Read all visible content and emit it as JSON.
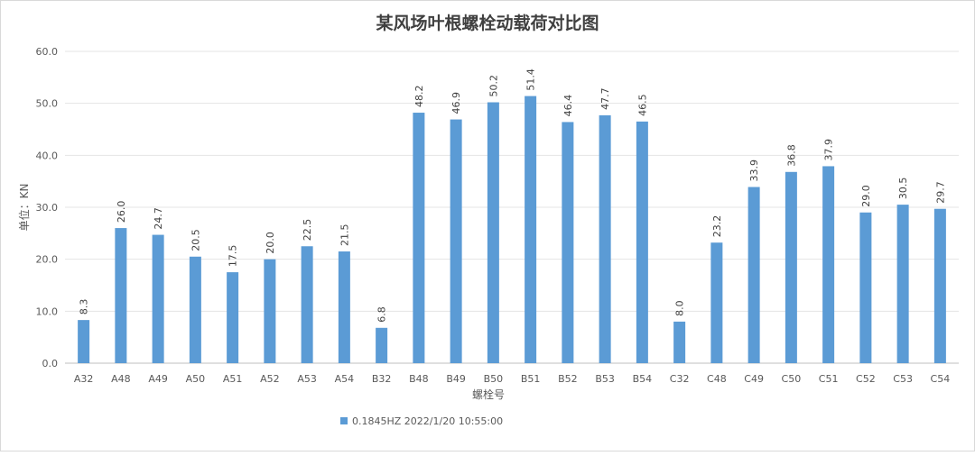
{
  "chart_data": {
    "type": "bar",
    "title": "某风场叶根螺栓动载荷对比图",
    "xlabel": "螺栓号",
    "ylabel": "单位：KN",
    "ylim": [
      0,
      60
    ],
    "yticks": [
      "0.0",
      "10.0",
      "20.0",
      "30.0",
      "40.0",
      "50.0",
      "60.0"
    ],
    "grid": true,
    "legend_position": "bottom",
    "categories": [
      "A32",
      "A48",
      "A49",
      "A50",
      "A51",
      "A52",
      "A53",
      "A54",
      "B32",
      "B48",
      "B49",
      "B50",
      "B51",
      "B52",
      "B53",
      "B54",
      "C32",
      "C48",
      "C49",
      "C50",
      "C51",
      "C52",
      "C53",
      "C54"
    ],
    "series": [
      {
        "name": "0.1845HZ 2022/1/20  10:55:00",
        "color": "#5b9bd5",
        "values": [
          8.3,
          26.0,
          24.7,
          20.5,
          17.5,
          20.0,
          22.5,
          21.5,
          6.8,
          48.2,
          46.9,
          50.2,
          51.4,
          46.4,
          47.7,
          46.5,
          8.0,
          23.2,
          33.9,
          36.8,
          37.9,
          29.0,
          30.5,
          29.7
        ],
        "labels": [
          "8.3",
          "26.0",
          "24.7",
          "20.5",
          "17.5",
          "20.0",
          "22.5",
          "21.5",
          "6.8",
          "48.2",
          "46.9",
          "50.2",
          "51.4",
          "46.4",
          "47.7",
          "46.5",
          "8.0",
          "23.2",
          "33.9",
          "36.8",
          "37.9",
          "29.0",
          "30.5",
          "29.7"
        ]
      }
    ]
  }
}
